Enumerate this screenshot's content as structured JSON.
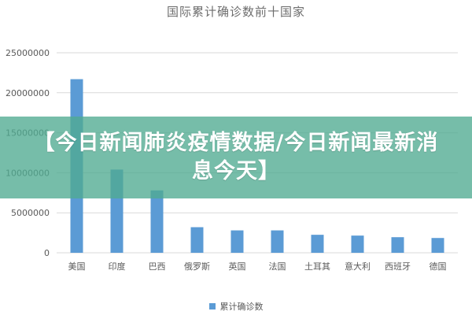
{
  "banner": {
    "text": "【今日新闻肺炎疫情数据/今日新闻最新消息今天】"
  },
  "colors": {
    "bar": "#5b9bd5",
    "grid": "#d9d9d9",
    "axis_text": "#595959",
    "banner_bg": "#4faa91"
  },
  "chart_data": {
    "type": "bar",
    "title": "国际累计确诊数前十国家",
    "xlabel": "",
    "ylabel": "",
    "categories": [
      "美国",
      "印度",
      "巴西",
      "俄罗斯",
      "英国",
      "法国",
      "土耳其",
      "意大利",
      "西班牙",
      "德国"
    ],
    "series": [
      {
        "name": "累计确诊数",
        "values": [
          21700000,
          10400000,
          7800000,
          3200000,
          2800000,
          2800000,
          2250000,
          2150000,
          1950000,
          1850000
        ]
      }
    ],
    "ylim": [
      0,
      25000000
    ],
    "yticks": [
      0,
      5000000,
      10000000,
      15000000,
      20000000,
      25000000
    ],
    "ytick_labels": [
      "0",
      "5000000",
      "10000000",
      "15000000",
      "20000000",
      "25000000"
    ],
    "grid": true,
    "legend_position": "bottom"
  }
}
